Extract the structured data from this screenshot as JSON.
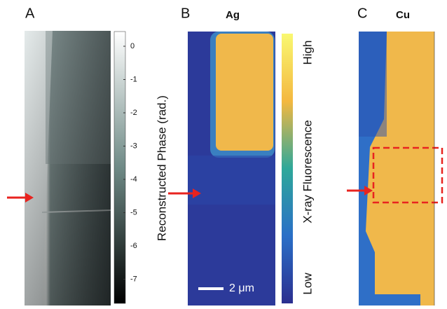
{
  "panels": [
    {
      "label": "A",
      "colorbar": {
        "title": "Reconstructed Phase (rad.)",
        "ticks": [
          0,
          -1,
          -2,
          -3,
          -4,
          -5,
          -6,
          -7
        ]
      }
    },
    {
      "label": "B",
      "element": "Ag",
      "scale_bar": "2 μm",
      "colorbar": {
        "title": "X-ray Fluorescence",
        "high": "High",
        "low": "Low"
      }
    },
    {
      "label": "C",
      "element": "Cu"
    }
  ]
}
